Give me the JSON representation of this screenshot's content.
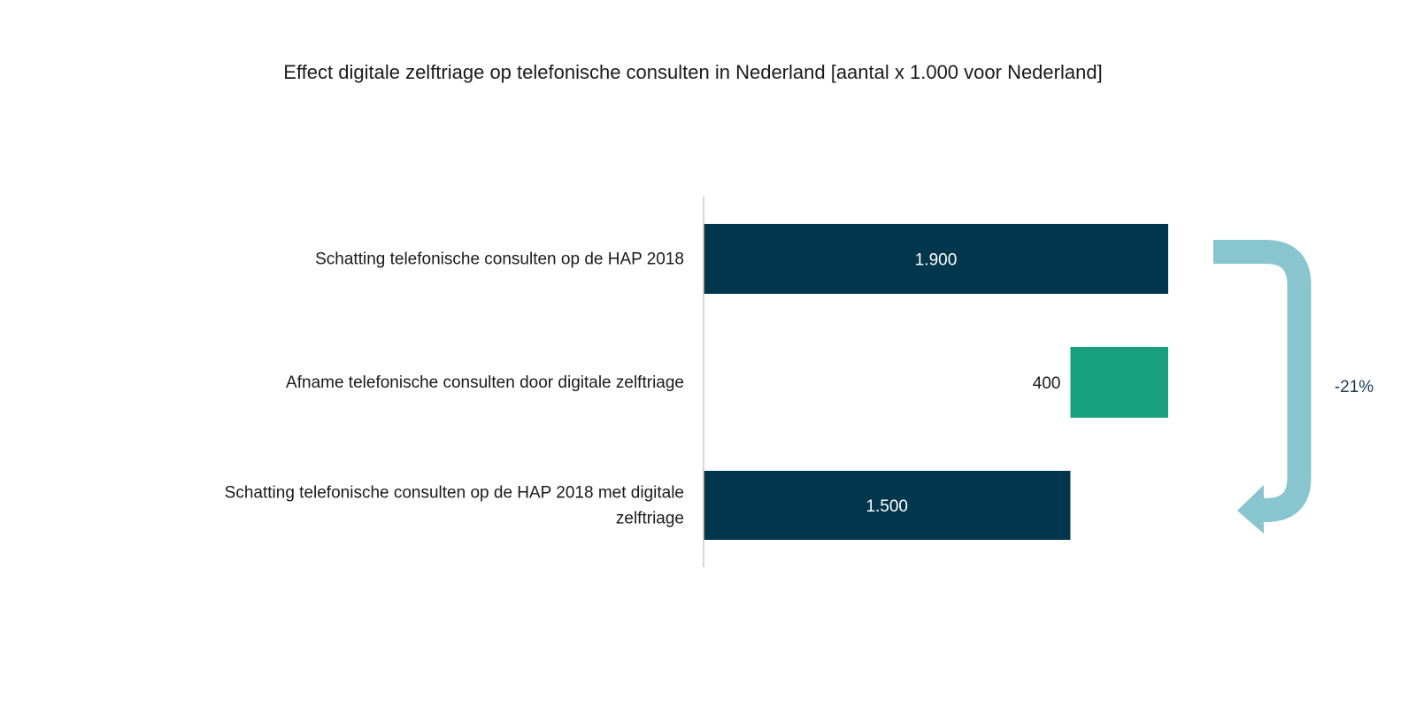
{
  "chart_data": {
    "type": "bar",
    "orientation": "horizontal",
    "title": "Effect digitale zelftriage op telefonische consulten in Nederland [aantal x 1.000 voor Nederland]",
    "categories": [
      "Schatting telefonische consulten op de HAP 2018",
      "Afname telefonische consulten door digitale zelftriage",
      "Schatting telefonische consulten op de HAP 2018 met digitale zelftriage"
    ],
    "category_lines": [
      [
        "Schatting telefonische consulten op de HAP 2018"
      ],
      [
        "Afname telefonische consulten door digitale zelftriage"
      ],
      [
        "Schatting telefonische consulten op de HAP 2018 met digitale",
        "zelftriage"
      ]
    ],
    "bars": [
      {
        "start": 0,
        "end": 1900,
        "label": "1.900",
        "color": "#02364d",
        "label_position": "inside"
      },
      {
        "start": 1500,
        "end": 1900,
        "label": "400",
        "color": "#19a07c",
        "label_position": "left"
      },
      {
        "start": 0,
        "end": 1500,
        "label": "1.500",
        "color": "#02364d",
        "label_position": "inside"
      }
    ],
    "xlim": [
      0,
      1900
    ],
    "annotation": {
      "text": "-21%",
      "color": "#88c5cf",
      "text_color": "#1f3d55"
    },
    "grid": false
  }
}
